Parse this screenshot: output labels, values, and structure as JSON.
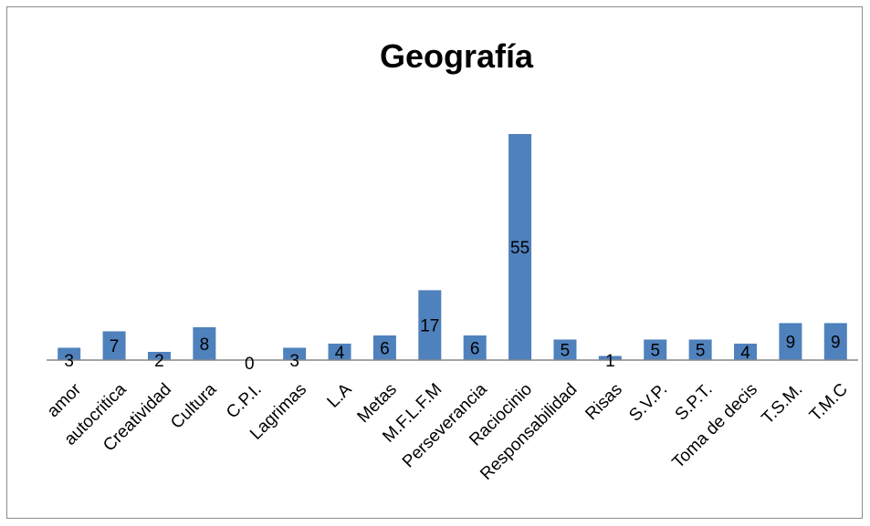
{
  "chart_data": {
    "type": "bar",
    "title": "Geografía",
    "categories": [
      "amor",
      "autocritica",
      "Creatividad",
      "Cultura",
      "C.P.I.",
      "Lagrimas",
      "L.A",
      "Metas",
      "M.F.L.F.M",
      "Perseverancia",
      "Raciocinio",
      "Responsabilidad",
      "Risas",
      "S.V.P.",
      "S.P.T.",
      "Toma de decis",
      "T.S.M.",
      "T.M.C"
    ],
    "values": [
      3,
      7,
      2,
      8,
      0,
      3,
      4,
      6,
      17,
      6,
      55,
      5,
      1,
      5,
      5,
      4,
      9,
      9
    ],
    "xlabel": "",
    "ylabel": "",
    "ylim": [
      0,
      55
    ],
    "grid": false,
    "legend": "none",
    "colors": {
      "bar": "#4f81bd",
      "axis": "#868686",
      "border": "#8c8c8c"
    }
  }
}
